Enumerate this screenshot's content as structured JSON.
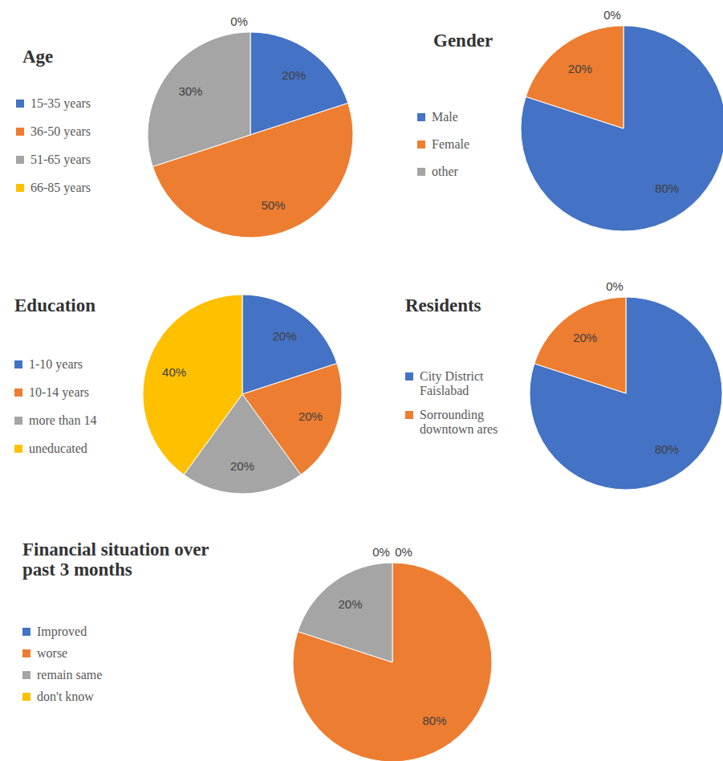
{
  "chart_data": [
    {
      "type": "pie",
      "title": "Age",
      "categories": [
        "15-35 years",
        "36-50 years",
        "51-65 years",
        "66-85 years"
      ],
      "values": [
        20,
        50,
        30,
        0
      ],
      "value_labels": [
        "20%",
        "50%",
        "30%",
        "0%"
      ],
      "colors": [
        "#4472c4",
        "#ed7d31",
        "#a5a5a5",
        "#ffc000"
      ],
      "data_labels": true,
      "legend": "left"
    },
    {
      "type": "pie",
      "title": "Gender",
      "categories": [
        "Male",
        "Female",
        "other"
      ],
      "values": [
        80,
        20,
        0
      ],
      "value_labels": [
        "80%",
        "20%",
        "0%"
      ],
      "colors": [
        "#4472c4",
        "#ed7d31",
        "#a5a5a5"
      ],
      "data_labels": true,
      "legend": "left"
    },
    {
      "type": "pie",
      "title": "Education",
      "categories": [
        "1-10 years",
        "10-14 years",
        "more than 14",
        "uneducated"
      ],
      "values": [
        20,
        20,
        20,
        40
      ],
      "value_labels": [
        "20%",
        "20%",
        "20%",
        "40%"
      ],
      "colors": [
        "#4472c4",
        "#ed7d31",
        "#a5a5a5",
        "#ffc000"
      ],
      "data_labels": true,
      "legend": "left"
    },
    {
      "type": "pie",
      "title": "Residents",
      "categories": [
        "City District Faislabad",
        "Sorrounding downtown ares",
        null
      ],
      "values": [
        80,
        20,
        0
      ],
      "value_labels": [
        "80%",
        "20%",
        "0%"
      ],
      "colors": [
        "#4472c4",
        "#ed7d31",
        "#a5a5a5"
      ],
      "data_labels": true,
      "legend": "left"
    },
    {
      "type": "pie",
      "title": "Financial situation over past 3 months",
      "categories": [
        "Improved",
        "worse",
        "remain same",
        "don't know"
      ],
      "values": [
        0,
        80,
        20,
        0
      ],
      "value_labels": [
        "0%",
        "80%",
        "20%",
        "0%"
      ],
      "colors": [
        "#4472c4",
        "#ed7d31",
        "#a5a5a5",
        "#ffc000"
      ],
      "data_labels": true,
      "legend": "left"
    }
  ]
}
